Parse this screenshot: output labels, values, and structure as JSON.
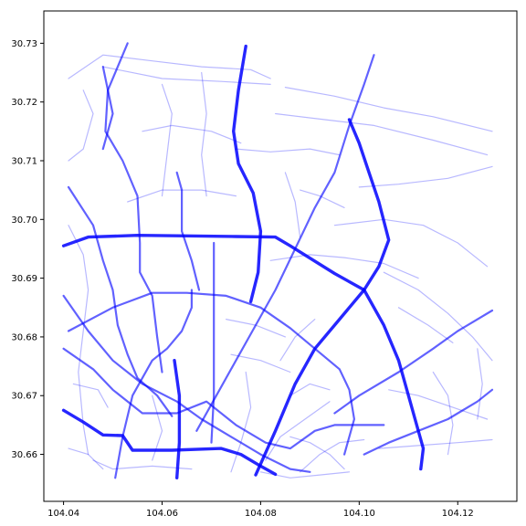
{
  "chart_data": {
    "type": "line",
    "title": "",
    "xlabel": "",
    "ylabel": "",
    "xlim": [
      104.036,
      104.132
    ],
    "ylim": [
      30.652,
      30.7355
    ],
    "x_ticks": [
      "104.04",
      "104.06",
      "104.08",
      "104.10",
      "104.12"
    ],
    "y_ticks": [
      "30.66",
      "30.67",
      "30.68",
      "30.69",
      "30.70",
      "30.71",
      "30.72",
      "30.73"
    ],
    "grid": false,
    "color": "#0000ff",
    "heavy_roads": [
      [
        [
          104.04,
          30.6955
        ],
        [
          104.045,
          30.697
        ],
        [
          104.055,
          30.6973
        ],
        [
          104.065,
          30.6972
        ],
        [
          104.075,
          30.6971
        ],
        [
          104.083,
          30.697
        ],
        [
          104.086,
          30.6955
        ],
        [
          104.095,
          30.6908
        ],
        [
          104.101,
          30.688
        ]
      ],
      [
        [
          104.101,
          30.688
        ],
        [
          104.105,
          30.682
        ],
        [
          104.108,
          30.676
        ],
        [
          104.11,
          30.67
        ],
        [
          104.112,
          30.664
        ],
        [
          104.113,
          30.661
        ],
        [
          104.1125,
          30.6575
        ]
      ],
      [
        [
          104.077,
          30.7295
        ],
        [
          104.0755,
          30.722
        ],
        [
          104.0745,
          30.715
        ],
        [
          104.0755,
          30.7095
        ],
        [
          104.0785,
          30.7045
        ],
        [
          104.08,
          30.698
        ],
        [
          104.0795,
          30.691
        ],
        [
          104.078,
          30.686
        ]
      ],
      [
        [
          104.079,
          30.6565
        ],
        [
          104.083,
          30.664
        ],
        [
          104.087,
          30.672
        ],
        [
          104.091,
          30.678
        ],
        [
          104.096,
          30.683
        ],
        [
          104.101,
          30.688
        ],
        [
          104.104,
          30.692
        ],
        [
          104.106,
          30.6965
        ],
        [
          104.104,
          30.703
        ],
        [
          104.102,
          30.708
        ],
        [
          104.1,
          30.713
        ],
        [
          104.098,
          30.717
        ]
      ],
      [
        [
          104.04,
          30.6675
        ],
        [
          104.044,
          30.6655
        ],
        [
          104.048,
          30.6633
        ],
        [
          104.052,
          30.6632
        ],
        [
          104.054,
          30.6607
        ],
        [
          104.062,
          30.6607
        ],
        [
          104.072,
          30.661
        ],
        [
          104.076,
          30.66
        ],
        [
          104.08,
          30.658
        ],
        [
          104.083,
          30.6566
        ]
      ],
      [
        [
          104.063,
          30.656
        ],
        [
          104.0635,
          30.662
        ],
        [
          104.0635,
          30.67
        ],
        [
          104.0625,
          30.676
        ]
      ]
    ],
    "main_roads": [
      [
        [
          104.041,
          30.7055
        ],
        [
          104.046,
          30.699
        ],
        [
          104.048,
          30.693
        ],
        [
          104.05,
          30.688
        ],
        [
          104.051,
          30.682
        ],
        [
          104.053,
          30.677
        ],
        [
          104.055,
          30.673
        ],
        [
          104.059,
          30.67
        ],
        [
          104.062,
          30.6665
        ]
      ],
      [
        [
          104.053,
          30.73
        ],
        [
          104.049,
          30.722
        ],
        [
          104.0485,
          30.715
        ],
        [
          104.052,
          30.71
        ],
        [
          104.055,
          30.704
        ],
        [
          104.0555,
          30.696
        ],
        [
          104.0555,
          30.691
        ],
        [
          104.058,
          30.687
        ],
        [
          104.059,
          30.68
        ],
        [
          104.06,
          30.674
        ]
      ],
      [
        [
          104.04,
          30.687
        ],
        [
          104.045,
          30.681
        ],
        [
          104.05,
          30.676
        ],
        [
          104.056,
          30.672
        ],
        [
          104.063,
          30.669
        ],
        [
          104.068,
          30.666
        ],
        [
          104.074,
          30.663
        ],
        [
          104.08,
          30.66
        ],
        [
          104.086,
          30.6575
        ],
        [
          104.09,
          30.657
        ]
      ],
      [
        [
          104.041,
          30.681
        ],
        [
          104.05,
          30.685
        ],
        [
          104.058,
          30.6875
        ],
        [
          104.065,
          30.6875
        ],
        [
          104.073,
          30.687
        ],
        [
          104.08,
          30.685
        ],
        [
          104.086,
          30.6815
        ],
        [
          104.091,
          30.678
        ],
        [
          104.096,
          30.6745
        ],
        [
          104.098,
          30.671
        ],
        [
          104.099,
          30.666
        ],
        [
          104.097,
          30.66
        ]
      ],
      [
        [
          104.04,
          30.678
        ],
        [
          104.046,
          30.6745
        ],
        [
          104.05,
          30.671
        ],
        [
          104.056,
          30.667
        ],
        [
          104.063,
          30.667
        ],
        [
          104.069,
          30.669
        ],
        [
          104.075,
          30.665
        ],
        [
          104.081,
          30.662
        ],
        [
          104.086,
          30.661
        ],
        [
          104.091,
          30.664
        ],
        [
          104.095,
          30.665
        ],
        [
          104.105,
          30.665
        ]
      ],
      [
        [
          104.067,
          30.664
        ],
        [
          104.071,
          30.67
        ],
        [
          104.075,
          30.676
        ],
        [
          104.079,
          30.682
        ],
        [
          104.083,
          30.688
        ],
        [
          104.087,
          30.695
        ],
        [
          104.091,
          30.702
        ],
        [
          104.095,
          30.708
        ],
        [
          104.098,
          30.716
        ],
        [
          104.101,
          30.723
        ],
        [
          104.103,
          30.728
        ]
      ],
      [
        [
          104.07,
          30.662
        ],
        [
          104.0705,
          30.67
        ],
        [
          104.0705,
          30.68
        ],
        [
          104.0705,
          30.69
        ],
        [
          104.0705,
          30.696
        ]
      ],
      [
        [
          104.0505,
          30.656
        ],
        [
          104.052,
          30.663
        ],
        [
          104.054,
          30.67
        ],
        [
          104.058,
          30.676
        ],
        [
          104.061,
          30.678
        ],
        [
          104.064,
          30.681
        ],
        [
          104.066,
          30.685
        ],
        [
          104.066,
          30.688
        ]
      ],
      [
        [
          104.095,
          30.667
        ],
        [
          104.1,
          30.67
        ],
        [
          104.108,
          30.674
        ],
        [
          104.115,
          30.678
        ],
        [
          104.12,
          30.681
        ],
        [
          104.127,
          30.6845
        ]
      ],
      [
        [
          104.101,
          30.66
        ],
        [
          104.106,
          30.662
        ],
        [
          104.112,
          30.664
        ],
        [
          104.118,
          30.666
        ],
        [
          104.124,
          30.669
        ],
        [
          104.127,
          30.671
        ]
      ],
      [
        [
          104.063,
          30.708
        ],
        [
          104.064,
          30.705
        ],
        [
          104.064,
          30.698
        ],
        [
          104.066,
          30.693
        ],
        [
          104.0675,
          30.688
        ]
      ],
      [
        [
          104.048,
          30.712
        ],
        [
          104.05,
          30.718
        ],
        [
          104.048,
          30.726
        ]
      ]
    ],
    "minor_roads": [
      [
        [
          104.041,
          30.724
        ],
        [
          104.048,
          30.728
        ],
        [
          104.058,
          30.727
        ],
        [
          104.068,
          30.726
        ],
        [
          104.078,
          30.7255
        ],
        [
          104.082,
          30.724
        ]
      ],
      [
        [
          104.048,
          30.726
        ],
        [
          104.06,
          30.724
        ],
        [
          104.072,
          30.7235
        ],
        [
          104.082,
          30.723
        ]
      ],
      [
        [
          104.085,
          30.7225
        ],
        [
          104.095,
          30.721
        ],
        [
          104.105,
          30.719
        ],
        [
          104.115,
          30.7175
        ],
        [
          104.127,
          30.715
        ]
      ],
      [
        [
          104.083,
          30.718
        ],
        [
          104.093,
          30.717
        ],
        [
          104.103,
          30.716
        ],
        [
          104.115,
          30.7135
        ],
        [
          104.126,
          30.711
        ]
      ],
      [
        [
          104.1,
          30.7055
        ],
        [
          104.108,
          30.706
        ],
        [
          104.118,
          30.707
        ],
        [
          104.127,
          30.709
        ]
      ],
      [
        [
          104.075,
          30.712
        ],
        [
          104.082,
          30.7115
        ],
        [
          104.09,
          30.712
        ],
        [
          104.096,
          30.711
        ]
      ],
      [
        [
          104.095,
          30.699
        ],
        [
          104.105,
          30.7
        ],
        [
          104.113,
          30.699
        ],
        [
          104.12,
          30.696
        ],
        [
          104.126,
          30.692
        ]
      ],
      [
        [
          104.041,
          30.71
        ],
        [
          104.044,
          30.712
        ],
        [
          104.046,
          30.718
        ],
        [
          104.044,
          30.722
        ]
      ],
      [
        [
          104.041,
          30.699
        ],
        [
          104.044,
          30.694
        ],
        [
          104.045,
          30.688
        ],
        [
          104.044,
          30.681
        ],
        [
          104.043,
          30.674
        ],
        [
          104.044,
          30.665
        ],
        [
          104.045,
          30.66
        ]
      ],
      [
        [
          104.053,
          30.703
        ],
        [
          104.06,
          30.705
        ],
        [
          104.068,
          30.705
        ],
        [
          104.075,
          30.704
        ]
      ],
      [
        [
          104.056,
          30.715
        ],
        [
          104.062,
          30.716
        ],
        [
          104.07,
          30.715
        ],
        [
          104.076,
          30.713
        ]
      ],
      [
        [
          104.06,
          30.723
        ],
        [
          104.062,
          30.718
        ],
        [
          104.061,
          30.711
        ],
        [
          104.06,
          30.704
        ]
      ],
      [
        [
          104.068,
          30.725
        ],
        [
          104.069,
          30.718
        ],
        [
          104.068,
          30.711
        ],
        [
          104.069,
          30.704
        ]
      ],
      [
        [
          104.085,
          30.708
        ],
        [
          104.087,
          30.703
        ],
        [
          104.088,
          30.697
        ]
      ],
      [
        [
          104.088,
          30.705
        ],
        [
          104.092,
          30.704
        ],
        [
          104.097,
          30.702
        ]
      ],
      [
        [
          104.082,
          30.693
        ],
        [
          104.09,
          30.694
        ],
        [
          104.097,
          30.6935
        ],
        [
          104.105,
          30.6925
        ],
        [
          104.112,
          30.69
        ]
      ],
      [
        [
          104.105,
          30.691
        ],
        [
          104.112,
          30.688
        ],
        [
          104.118,
          30.684
        ],
        [
          104.123,
          30.68
        ],
        [
          104.127,
          30.676
        ]
      ],
      [
        [
          104.108,
          30.685
        ],
        [
          104.114,
          30.682
        ],
        [
          104.119,
          30.679
        ]
      ],
      [
        [
          104.106,
          30.671
        ],
        [
          104.112,
          30.67
        ],
        [
          104.119,
          30.668
        ],
        [
          104.126,
          30.666
        ]
      ],
      [
        [
          104.115,
          30.674
        ],
        [
          104.118,
          30.67
        ],
        [
          104.119,
          30.665
        ],
        [
          104.118,
          30.66
        ]
      ],
      [
        [
          104.124,
          30.678
        ],
        [
          104.125,
          30.672
        ],
        [
          104.124,
          30.666
        ]
      ],
      [
        [
          104.104,
          30.661
        ],
        [
          104.112,
          30.6615
        ],
        [
          104.12,
          30.662
        ],
        [
          104.127,
          30.6625
        ]
      ],
      [
        [
          104.086,
          30.67
        ],
        [
          104.09,
          30.672
        ],
        [
          104.094,
          30.671
        ]
      ],
      [
        [
          104.084,
          30.676
        ],
        [
          104.087,
          30.68
        ],
        [
          104.091,
          30.683
        ]
      ],
      [
        [
          104.074,
          30.677
        ],
        [
          104.08,
          30.676
        ],
        [
          104.086,
          30.674
        ]
      ],
      [
        [
          104.073,
          30.683
        ],
        [
          104.079,
          30.682
        ],
        [
          104.085,
          30.68
        ]
      ],
      [
        [
          104.046,
          30.659
        ],
        [
          104.05,
          30.6575
        ],
        [
          104.058,
          30.658
        ],
        [
          104.066,
          30.6575
        ]
      ],
      [
        [
          104.058,
          30.659
        ],
        [
          104.06,
          30.664
        ],
        [
          104.058,
          30.67
        ]
      ],
      [
        [
          104.074,
          30.657
        ],
        [
          104.076,
          30.662
        ],
        [
          104.078,
          30.668
        ],
        [
          104.077,
          30.674
        ]
      ],
      [
        [
          104.081,
          30.659
        ],
        [
          104.084,
          30.663
        ],
        [
          104.089,
          30.666
        ],
        [
          104.094,
          30.669
        ]
      ],
      [
        [
          104.088,
          30.657
        ],
        [
          104.092,
          30.66
        ],
        [
          104.096,
          30.662
        ],
        [
          104.101,
          30.6625
        ]
      ],
      [
        [
          104.086,
          30.663
        ],
        [
          104.09,
          30.662
        ],
        [
          104.094,
          30.66
        ],
        [
          104.097,
          30.6575
        ]
      ],
      [
        [
          104.08,
          30.657
        ],
        [
          104.086,
          30.656
        ],
        [
          104.092,
          30.6565
        ],
        [
          104.098,
          30.657
        ]
      ],
      [
        [
          104.041,
          30.661
        ],
        [
          104.045,
          30.66
        ],
        [
          104.048,
          30.6575
        ]
      ],
      [
        [
          104.042,
          30.672
        ],
        [
          104.047,
          30.671
        ],
        [
          104.049,
          30.668
        ]
      ]
    ]
  }
}
